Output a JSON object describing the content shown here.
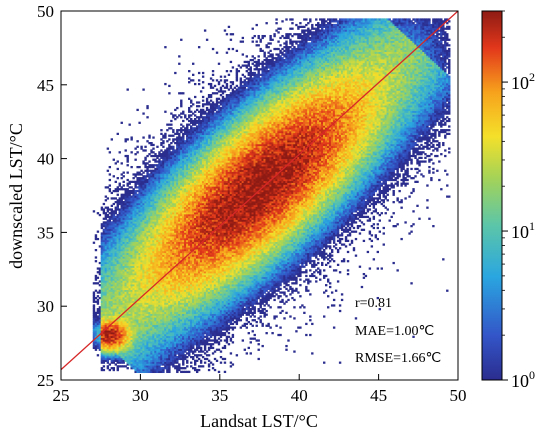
{
  "chart_data": {
    "type": "heatmap",
    "subtype": "2D density scatter (hexbin-style) with 1:1 line",
    "xlabel": "Landsat LST/°C",
    "ylabel": "downscaled LST/°C",
    "xlim": [
      25,
      50
    ],
    "ylim": [
      25,
      50
    ],
    "xticks": [
      25,
      30,
      35,
      40,
      45,
      50
    ],
    "yticks": [
      25,
      30,
      35,
      40,
      45,
      50
    ],
    "grid": false,
    "reference_line": {
      "label": "",
      "x": [
        25,
        50
      ],
      "y": [
        25.7,
        50
      ],
      "color": "#d62728"
    },
    "density_core": [
      {
        "x": 37.5,
        "y": 38.0,
        "spread_major": 3.2,
        "spread_minor": 1.6,
        "peak_count": 300
      },
      {
        "x": 28.0,
        "y": 28.0,
        "spread_major": 0.6,
        "spread_minor": 0.5,
        "peak_count": 250
      }
    ],
    "annotations": [
      "r=0.81",
      "MAE=1.00℃",
      "RMSE=1.66℃"
    ],
    "colorbar": {
      "scale": "log",
      "range": [
        1,
        300
      ],
      "colormap": "jet",
      "ticks": [
        {
          "value": 1,
          "base": "10",
          "exp": "0"
        },
        {
          "value": 10,
          "base": "10",
          "exp": "1"
        },
        {
          "value": 100,
          "base": "10",
          "exp": "2"
        }
      ]
    }
  }
}
